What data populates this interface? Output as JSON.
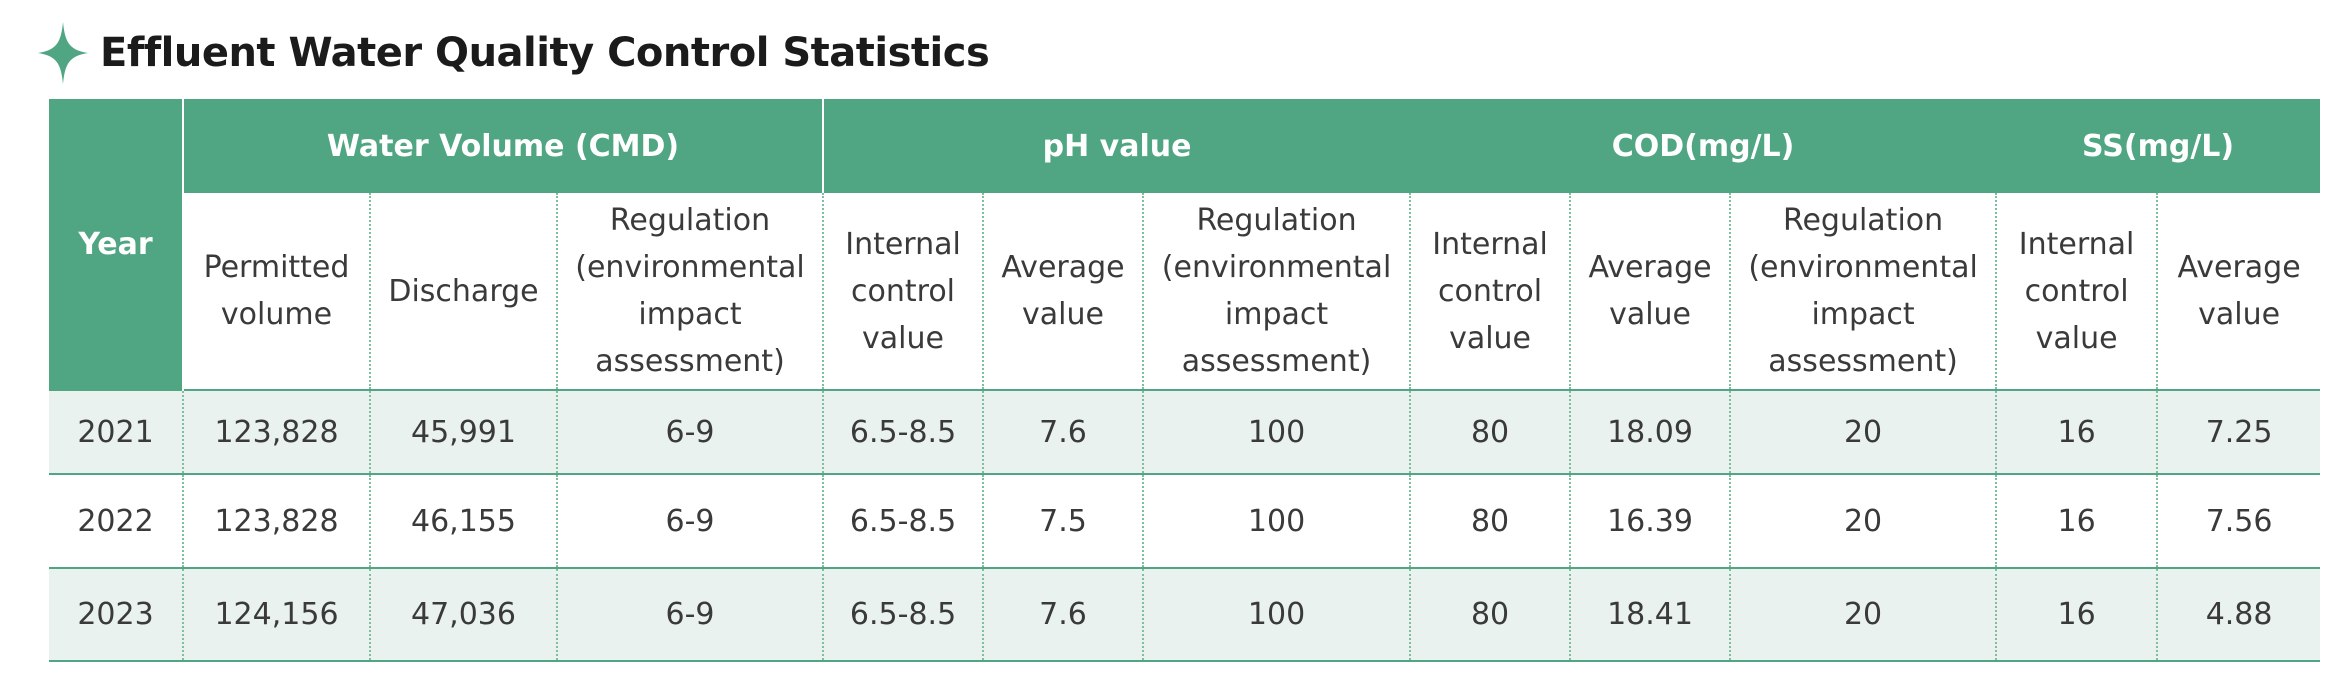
{
  "title": "Effluent Water Quality Control Statistics",
  "icons": {
    "title_icon": "four-point-star-icon"
  },
  "colors": {
    "accent": "#50a583",
    "row_tint": "#e9f2ee",
    "header_text": "#ffffff"
  },
  "table": {
    "year_header": "Year",
    "groups": [
      {
        "label": "Water Volume (CMD)"
      },
      {
        "label": "pH value"
      },
      {
        "label": "COD(mg/L)"
      },
      {
        "label": "SS(mg/L)"
      }
    ],
    "subheaders": [
      "Permitted volume",
      "Discharge",
      "Regulation (environmental impact assessment)",
      "Internal control value",
      "Average value",
      "Regulation (environmental impact assessment)",
      "Internal control value",
      "Average value",
      "Regulation (environmental impact assessment)",
      "Internal control value",
      "Average value"
    ],
    "rows": [
      {
        "year": "2021",
        "cells": [
          "123,828",
          "45,991",
          "6-9",
          "6.5-8.5",
          "7.6",
          "100",
          "80",
          "18.09",
          "20",
          "16",
          "7.25"
        ]
      },
      {
        "year": "2022",
        "cells": [
          "123,828",
          "46,155",
          "6-9",
          "6.5-8.5",
          "7.5",
          "100",
          "80",
          "16.39",
          "20",
          "16",
          "7.56"
        ]
      },
      {
        "year": "2023",
        "cells": [
          "124,156",
          "47,036",
          "6-9",
          "6.5-8.5",
          "7.6",
          "100",
          "80",
          "18.41",
          "20",
          "16",
          "4.88"
        ]
      }
    ]
  }
}
